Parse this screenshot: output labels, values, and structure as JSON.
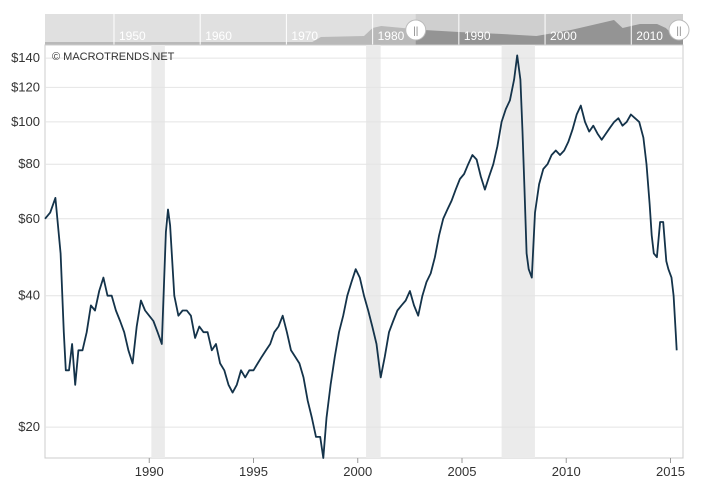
{
  "watermark": "© MACROTRENDS.NET",
  "navigator": {
    "decade_labels": [
      "1950",
      "1960",
      "1970",
      "1980",
      "1990",
      "2000",
      "2010"
    ],
    "handle_glyph": "||",
    "colors": {
      "band": "#cfcfcf",
      "area": "#8a8a8a",
      "selected_area": "#6d6d6d",
      "label": "#ffffff"
    }
  },
  "colors": {
    "line": "#14334a",
    "recession": "#ebebeb",
    "grid": "#e4e4e4",
    "axis_text": "#333333",
    "frame": "#cccccc"
  },
  "chart_data": {
    "type": "line",
    "title": "",
    "xlabel": "",
    "ylabel": "",
    "y_scale": "log",
    "ylim": [
      17,
      150
    ],
    "xlim": [
      1985.0,
      2015.6
    ],
    "x_ticks": [
      {
        "value": 1990,
        "label": "1990"
      },
      {
        "value": 1995,
        "label": "1995"
      },
      {
        "value": 2000,
        "label": "2000"
      },
      {
        "value": 2005,
        "label": "2005"
      },
      {
        "value": 2010,
        "label": "2010"
      },
      {
        "value": 2015,
        "label": "2015"
      }
    ],
    "y_ticks": [
      {
        "value": 20,
        "label": "$20"
      },
      {
        "value": 40,
        "label": "$40"
      },
      {
        "value": 60,
        "label": "$60"
      },
      {
        "value": 80,
        "label": "$80"
      },
      {
        "value": 100,
        "label": "$100"
      },
      {
        "value": 120,
        "label": "$120"
      },
      {
        "value": 140,
        "label": "$140"
      }
    ],
    "recessions": [
      [
        1990.1,
        1990.75
      ],
      [
        2000.4,
        2001.1
      ],
      [
        2006.9,
        2008.5
      ]
    ],
    "grid": "horizontal",
    "series": [
      {
        "points": [
          [
            1985.0,
            60
          ],
          [
            1985.25,
            62
          ],
          [
            1985.5,
            67
          ],
          [
            1985.75,
            50
          ],
          [
            1985.9,
            33
          ],
          [
            1986.0,
            27
          ],
          [
            1986.15,
            27
          ],
          [
            1986.3,
            31
          ],
          [
            1986.45,
            25
          ],
          [
            1986.6,
            30
          ],
          [
            1986.8,
            30
          ],
          [
            1987.0,
            33
          ],
          [
            1987.2,
            38
          ],
          [
            1987.4,
            37
          ],
          [
            1987.6,
            41
          ],
          [
            1987.8,
            44
          ],
          [
            1988.0,
            40
          ],
          [
            1988.2,
            40
          ],
          [
            1988.4,
            37
          ],
          [
            1988.6,
            35
          ],
          [
            1988.8,
            33
          ],
          [
            1989.0,
            30
          ],
          [
            1989.2,
            28
          ],
          [
            1989.4,
            34
          ],
          [
            1989.6,
            39
          ],
          [
            1989.8,
            37
          ],
          [
            1990.0,
            36
          ],
          [
            1990.2,
            35
          ],
          [
            1990.4,
            33
          ],
          [
            1990.6,
            31
          ],
          [
            1990.8,
            56
          ],
          [
            1990.9,
            63
          ],
          [
            1991.0,
            58
          ],
          [
            1991.2,
            40
          ],
          [
            1991.4,
            36
          ],
          [
            1991.6,
            37
          ],
          [
            1991.8,
            37
          ],
          [
            1992.0,
            36
          ],
          [
            1992.2,
            32
          ],
          [
            1992.4,
            34
          ],
          [
            1992.6,
            33
          ],
          [
            1992.8,
            33
          ],
          [
            1993.0,
            30
          ],
          [
            1993.2,
            31
          ],
          [
            1993.4,
            28
          ],
          [
            1993.6,
            27
          ],
          [
            1993.8,
            25
          ],
          [
            1994.0,
            24
          ],
          [
            1994.2,
            25
          ],
          [
            1994.4,
            27
          ],
          [
            1994.6,
            26
          ],
          [
            1994.8,
            27
          ],
          [
            1995.0,
            27
          ],
          [
            1995.2,
            28
          ],
          [
            1995.4,
            29
          ],
          [
            1995.6,
            30
          ],
          [
            1995.8,
            31
          ],
          [
            1996.0,
            33
          ],
          [
            1996.2,
            34
          ],
          [
            1996.4,
            36
          ],
          [
            1996.6,
            33
          ],
          [
            1996.8,
            30
          ],
          [
            1997.0,
            29
          ],
          [
            1997.2,
            28
          ],
          [
            1997.4,
            26
          ],
          [
            1997.6,
            23
          ],
          [
            1997.8,
            21
          ],
          [
            1998.0,
            19
          ],
          [
            1998.2,
            19
          ],
          [
            1998.35,
            17
          ],
          [
            1998.5,
            21
          ],
          [
            1998.7,
            25
          ],
          [
            1998.9,
            29
          ],
          [
            1999.1,
            33
          ],
          [
            1999.3,
            36
          ],
          [
            1999.5,
            40
          ],
          [
            1999.7,
            43
          ],
          [
            1999.9,
            46
          ],
          [
            2000.1,
            44
          ],
          [
            2000.3,
            40
          ],
          [
            2000.5,
            37
          ],
          [
            2000.7,
            34
          ],
          [
            2000.9,
            31
          ],
          [
            2001.1,
            26
          ],
          [
            2001.3,
            29
          ],
          [
            2001.5,
            33
          ],
          [
            2001.7,
            35
          ],
          [
            2001.9,
            37
          ],
          [
            2002.1,
            38
          ],
          [
            2002.3,
            39
          ],
          [
            2002.5,
            41
          ],
          [
            2002.7,
            38
          ],
          [
            2002.9,
            36
          ],
          [
            2003.1,
            40
          ],
          [
            2003.3,
            43
          ],
          [
            2003.5,
            45
          ],
          [
            2003.7,
            49
          ],
          [
            2003.9,
            55
          ],
          [
            2004.1,
            60
          ],
          [
            2004.3,
            63
          ],
          [
            2004.5,
            66
          ],
          [
            2004.7,
            70
          ],
          [
            2004.9,
            74
          ],
          [
            2005.1,
            76
          ],
          [
            2005.3,
            80
          ],
          [
            2005.5,
            84
          ],
          [
            2005.7,
            82
          ],
          [
            2005.9,
            75
          ],
          [
            2006.1,
            70
          ],
          [
            2006.3,
            75
          ],
          [
            2006.5,
            80
          ],
          [
            2006.7,
            88
          ],
          [
            2006.9,
            100
          ],
          [
            2007.1,
            107
          ],
          [
            2007.3,
            112
          ],
          [
            2007.5,
            125
          ],
          [
            2007.65,
            142
          ],
          [
            2007.8,
            125
          ],
          [
            2007.9,
            95
          ],
          [
            2008.0,
            70
          ],
          [
            2008.1,
            50
          ],
          [
            2008.2,
            46
          ],
          [
            2008.35,
            44
          ],
          [
            2008.5,
            62
          ],
          [
            2008.7,
            72
          ],
          [
            2008.9,
            78
          ],
          [
            2009.1,
            80
          ],
          [
            2009.3,
            84
          ],
          [
            2009.5,
            86
          ],
          [
            2009.7,
            84
          ],
          [
            2009.9,
            86
          ],
          [
            2010.1,
            90
          ],
          [
            2010.3,
            96
          ],
          [
            2010.5,
            104
          ],
          [
            2010.7,
            109
          ],
          [
            2010.9,
            100
          ],
          [
            2011.1,
            95
          ],
          [
            2011.3,
            98
          ],
          [
            2011.5,
            94
          ],
          [
            2011.7,
            91
          ],
          [
            2011.9,
            94
          ],
          [
            2012.1,
            97
          ],
          [
            2012.3,
            100
          ],
          [
            2012.5,
            102
          ],
          [
            2012.7,
            98
          ],
          [
            2012.9,
            100
          ],
          [
            2013.1,
            104
          ],
          [
            2013.3,
            102
          ],
          [
            2013.5,
            100
          ],
          [
            2013.7,
            92
          ],
          [
            2013.85,
            80
          ],
          [
            2014.0,
            65
          ],
          [
            2014.1,
            55
          ],
          [
            2014.2,
            50
          ],
          [
            2014.35,
            49
          ],
          [
            2014.5,
            59
          ],
          [
            2014.65,
            59
          ],
          [
            2014.8,
            48
          ],
          [
            2014.9,
            46
          ],
          [
            2015.05,
            44
          ],
          [
            2015.15,
            40
          ],
          [
            2015.25,
            33
          ],
          [
            2015.3,
            30
          ]
        ]
      }
    ]
  }
}
